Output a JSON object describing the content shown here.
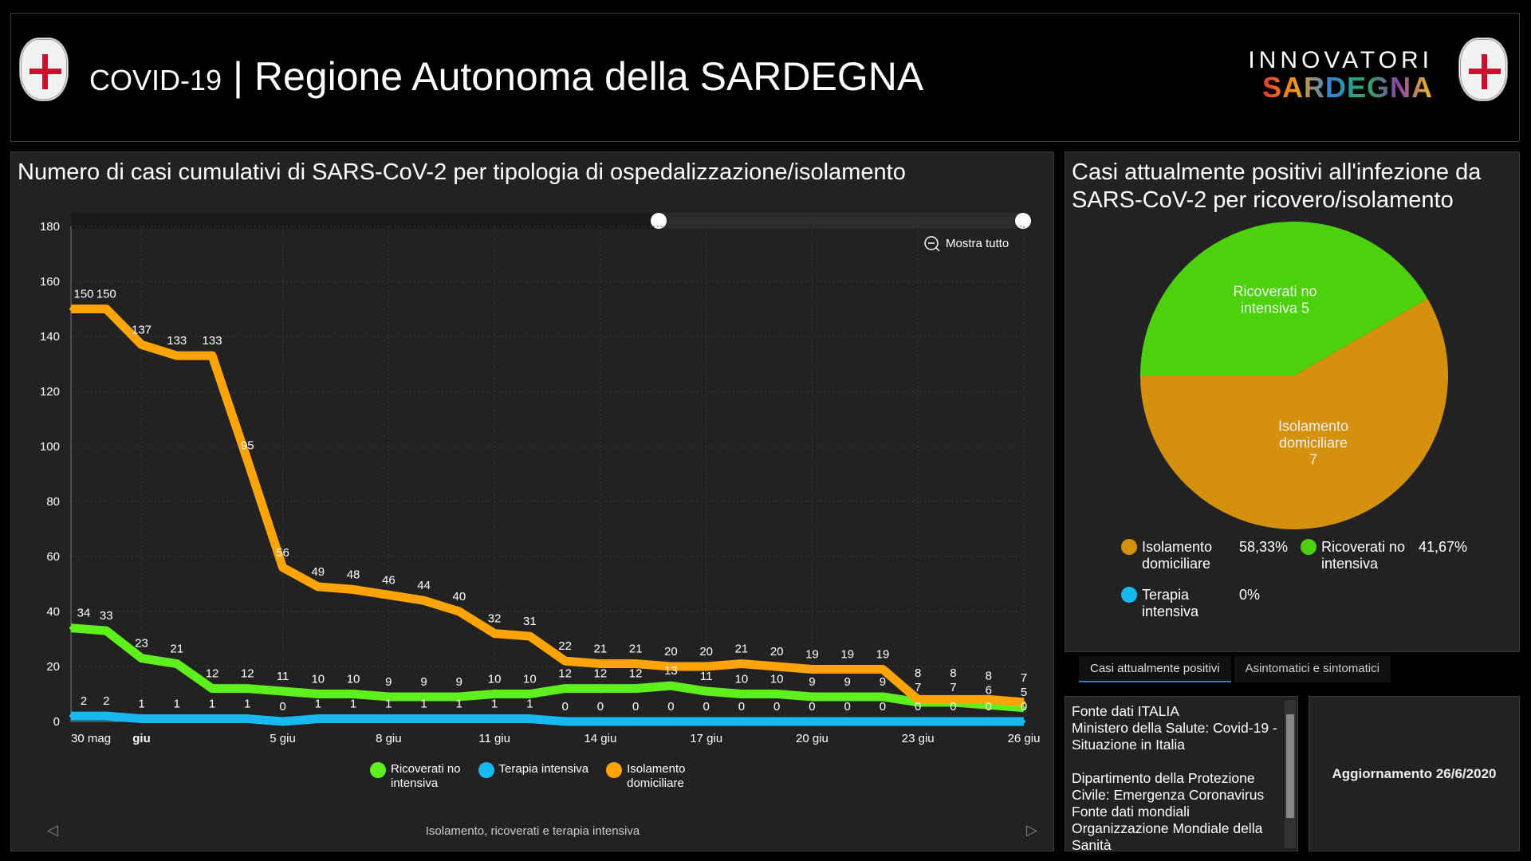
{
  "header": {
    "title_prefix": "COVID-19",
    "title_main": "Regione Autonoma della SARDEGNA",
    "logo_top": "INNOVATORI",
    "logo_bottom": "SARDEGNA"
  },
  "left_panel": {
    "title": "Numero di casi cumulativi di SARS-CoV-2 per tipologia di ospedalizzazione/isolamento",
    "show_all": "Mostra tutto",
    "footer": "Isolamento, ricoverati e terapia intensiva"
  },
  "chart_data": [
    {
      "type": "line",
      "x_tick_labels": [
        "30 mag",
        "giu",
        "5 giu",
        "8 giu",
        "11 giu",
        "14 giu",
        "17 giu",
        "20 giu",
        "23 giu",
        "26 giu"
      ],
      "x_tick_index": [
        0,
        2,
        6,
        9,
        12,
        15,
        18,
        21,
        24,
        27
      ],
      "x": [
        "30 mag",
        "31 mag",
        "1 giu",
        "2 giu",
        "3 giu",
        "4 giu",
        "5 giu",
        "6 giu",
        "7 giu",
        "8 giu",
        "9 giu",
        "10 giu",
        "11 giu",
        "12 giu",
        "13 giu",
        "14 giu",
        "15 giu",
        "16 giu",
        "17 giu",
        "18 giu",
        "19 giu",
        "20 giu",
        "21 giu",
        "22 giu",
        "23 giu",
        "24 giu",
        "25 giu",
        "26 giu"
      ],
      "ylim": [
        0,
        180
      ],
      "y_ticks": [
        0,
        20,
        40,
        60,
        80,
        100,
        120,
        140,
        160,
        180
      ],
      "grid": true,
      "legend": "bottom",
      "series": [
        {
          "name": "Ricoverati no intensiva",
          "color": "#5ef01c",
          "values": [
            34,
            33,
            23,
            21,
            12,
            12,
            11,
            10,
            10,
            9,
            9,
            9,
            10,
            10,
            12,
            12,
            12,
            13,
            11,
            10,
            10,
            9,
            9,
            9,
            7,
            7,
            6,
            5
          ]
        },
        {
          "name": "Terapia intensiva",
          "color": "#16b9f0",
          "values": [
            2,
            2,
            1,
            1,
            1,
            1,
            0,
            1,
            1,
            1,
            1,
            1,
            1,
            1,
            0,
            0,
            0,
            0,
            0,
            0,
            0,
            0,
            0,
            0,
            0,
            0,
            0,
            0
          ]
        },
        {
          "name": "Isolamento domiciliare",
          "color": "#ffa406",
          "values": [
            150,
            150,
            137,
            133,
            133,
            95,
            56,
            49,
            48,
            46,
            44,
            40,
            32,
            31,
            22,
            21,
            21,
            20,
            20,
            21,
            20,
            19,
            19,
            19,
            8,
            8,
            8,
            7
          ]
        }
      ]
    },
    {
      "type": "pie",
      "title": "Casi attualmente positivi all'infezione da SARS-CoV-2 per ricovero/isolamento",
      "slices": [
        {
          "name": "Isolamento domiciliare",
          "value": 7,
          "percent": "58,33%",
          "color": "#d4910c",
          "label": [
            "Isolamento",
            "domiciliare",
            "7"
          ]
        },
        {
          "name": "Ricoverati no intensiva",
          "value": 5,
          "percent": "41,67%",
          "color": "#4cd10c",
          "label": [
            "Ricoverati no",
            "intensiva 5"
          ]
        },
        {
          "name": "Terapia intensiva",
          "value": 0,
          "percent": "0%",
          "color": "#16b9f0"
        }
      ],
      "legend": [
        {
          "l1": "Isolamento",
          "l2": "domiciliare",
          "pct": "58,33%",
          "color": "#d4910c"
        },
        {
          "l1": "Ricoverati no",
          "l2": "intensiva",
          "pct": "41,67%",
          "color": "#4cd10c"
        },
        {
          "l1": "Terapia",
          "l2": "intensiva",
          "pct": "0%",
          "color": "#16b9f0"
        }
      ]
    }
  ],
  "tabs": [
    {
      "label": "Casi attualmente positivi"
    },
    {
      "label": "Asintomatici e sintomatici"
    }
  ],
  "source": {
    "lines": [
      "Fonte dati ITALIA",
      "Ministero della Salute: Covid-19 - Situazione in Italia",
      "",
      "Dipartimento della Protezione Civile: Emergenza Coronavirus",
      "Fonte dati mondiali",
      "Organizzazione Mondiale della Sanità"
    ]
  },
  "update": {
    "text": "Aggiornamento 26/6/2020"
  }
}
